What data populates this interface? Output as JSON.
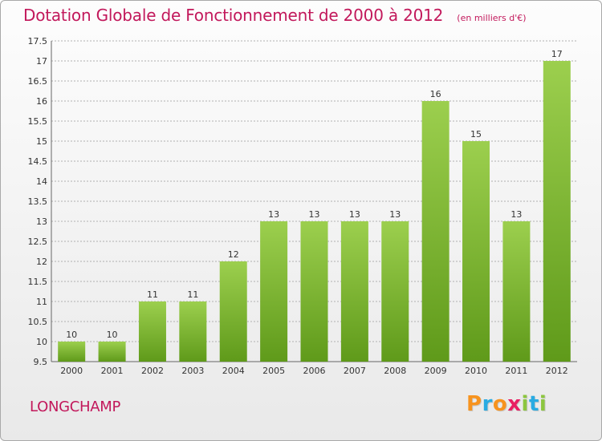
{
  "header": {
    "title": "Dotation Globale de Fonctionnement de 2000 à 2012",
    "subtitle": "(en milliers d'€)"
  },
  "footer": {
    "city": "LONGCHAMP",
    "logo": "Proxiti",
    "logo_colors": [
      "#f7931e",
      "#29abe2",
      "#f7931e",
      "#e91e63",
      "#8cc63f",
      "#29abe2",
      "#8cc63f"
    ]
  },
  "chart_data": {
    "type": "bar",
    "categories": [
      "2000",
      "2001",
      "2002",
      "2003",
      "2004",
      "2005",
      "2006",
      "2007",
      "2008",
      "2009",
      "2010",
      "2011",
      "2012"
    ],
    "values": [
      10,
      10,
      11,
      11,
      12,
      13,
      13,
      13,
      13,
      16,
      15,
      13,
      17
    ],
    "value_labels": [
      "10",
      "10",
      "11",
      "11",
      "12",
      "13",
      "13",
      "13",
      "13",
      "16",
      "15",
      "13",
      "17"
    ],
    "y_ticks": [
      9.5,
      10,
      10.5,
      11,
      11.5,
      12,
      12.5,
      13,
      13.5,
      14,
      14.5,
      15,
      15.5,
      16,
      16.5,
      17,
      17.5
    ],
    "y_tick_labels": [
      "9.5",
      "10",
      "10.5",
      "11",
      "11.5",
      "12",
      "12.5",
      "13",
      "13.5",
      "14",
      "14.5",
      "15",
      "15.5",
      "16",
      "16.5",
      "17",
      "17.5"
    ],
    "ylim": [
      9.5,
      17.5
    ],
    "grid": true,
    "bar_color_light": "#9ccf4e",
    "bar_color_dark": "#5f9a1a",
    "grid_color": "#b0b0b0"
  }
}
